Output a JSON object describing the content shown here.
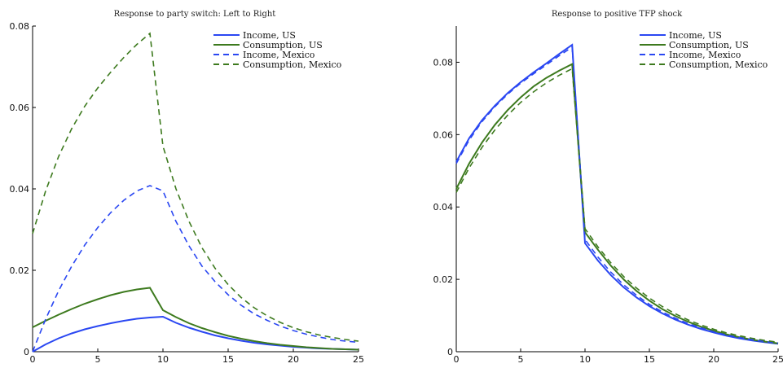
{
  "colors": {
    "blue": "#2a47f2",
    "green": "#3d7a1e"
  },
  "chart_data": [
    {
      "type": "line",
      "title": "Response to party switch: Left to Right",
      "xlabel": "",
      "ylabel": "",
      "xlim": [
        0,
        25
      ],
      "ylim": [
        0,
        0.08
      ],
      "xticks": [
        0,
        5,
        10,
        15,
        20,
        25
      ],
      "yticks": [
        0,
        0.02,
        0.04,
        0.06,
        0.08
      ],
      "ytick_labels": [
        "0",
        "0.02",
        "0.04",
        "0.06",
        "0.08"
      ],
      "legend_position": "top-right",
      "grid": false,
      "series": [
        {
          "name": "Income, US",
          "color": "#2a47f2",
          "dash": "solid",
          "points": [
            [
              0,
              0.0
            ],
            [
              1,
              0.0018
            ],
            [
              2,
              0.0033
            ],
            [
              3,
              0.0045
            ],
            [
              4,
              0.0055
            ],
            [
              5,
              0.0063
            ],
            [
              6,
              0.007
            ],
            [
              7,
              0.0076
            ],
            [
              8,
              0.0081
            ],
            [
              9,
              0.0084
            ],
            [
              10,
              0.0086
            ],
            [
              11,
              0.0071
            ],
            [
              12,
              0.0059
            ],
            [
              13,
              0.0049
            ],
            [
              14,
              0.004
            ],
            [
              15,
              0.0033
            ],
            [
              16,
              0.0027
            ],
            [
              17,
              0.0022
            ],
            [
              18,
              0.0018
            ],
            [
              19,
              0.0015
            ],
            [
              20,
              0.0012
            ],
            [
              21,
              0.001
            ],
            [
              22,
              0.0008
            ],
            [
              23,
              0.0007
            ],
            [
              24,
              0.0006
            ],
            [
              25,
              0.0005
            ]
          ]
        },
        {
          "name": "Consumption, US",
          "color": "#3d7a1e",
          "dash": "solid",
          "points": [
            [
              0,
              0.006
            ],
            [
              1,
              0.0076
            ],
            [
              2,
              0.0091
            ],
            [
              3,
              0.0105
            ],
            [
              4,
              0.0118
            ],
            [
              5,
              0.0129
            ],
            [
              6,
              0.0139
            ],
            [
              7,
              0.0147
            ],
            [
              8,
              0.0153
            ],
            [
              9,
              0.0157
            ],
            [
              10,
              0.0102
            ],
            [
              11,
              0.0085
            ],
            [
              12,
              0.007
            ],
            [
              13,
              0.0058
            ],
            [
              14,
              0.0048
            ],
            [
              15,
              0.0039
            ],
            [
              16,
              0.0032
            ],
            [
              17,
              0.0026
            ],
            [
              18,
              0.0021
            ],
            [
              19,
              0.0017
            ],
            [
              20,
              0.0014
            ],
            [
              21,
              0.0011
            ],
            [
              22,
              0.0009
            ],
            [
              23,
              0.0007
            ],
            [
              24,
              0.0006
            ],
            [
              25,
              0.0005
            ]
          ]
        },
        {
          "name": "Income, Mexico",
          "color": "#2a47f2",
          "dash": "dashed",
          "points": [
            [
              0,
              0.0
            ],
            [
              1,
              0.008
            ],
            [
              2,
              0.015
            ],
            [
              3,
              0.021
            ],
            [
              4,
              0.0262
            ],
            [
              5,
              0.0305
            ],
            [
              6,
              0.0342
            ],
            [
              7,
              0.0372
            ],
            [
              8,
              0.0395
            ],
            [
              9,
              0.0408
            ],
            [
              10,
              0.0395
            ],
            [
              11,
              0.032
            ],
            [
              12,
              0.026
            ],
            [
              13,
              0.021
            ],
            [
              14,
              0.0172
            ],
            [
              15,
              0.014
            ],
            [
              16,
              0.0114
            ],
            [
              17,
              0.0093
            ],
            [
              18,
              0.0077
            ],
            [
              19,
              0.0063
            ],
            [
              20,
              0.0052
            ],
            [
              21,
              0.0043
            ],
            [
              22,
              0.0036
            ],
            [
              23,
              0.003
            ],
            [
              24,
              0.0026
            ],
            [
              25,
              0.0023
            ]
          ]
        },
        {
          "name": "Consumption, Mexico",
          "color": "#3d7a1e",
          "dash": "dashed",
          "points": [
            [
              0,
              0.029
            ],
            [
              1,
              0.0395
            ],
            [
              2,
              0.048
            ],
            [
              3,
              0.0548
            ],
            [
              4,
              0.0603
            ],
            [
              5,
              0.0648
            ],
            [
              6,
              0.0687
            ],
            [
              7,
              0.0723
            ],
            [
              8,
              0.0755
            ],
            [
              9,
              0.0782
            ],
            [
              10,
              0.0505
            ],
            [
              11,
              0.04
            ],
            [
              12,
              0.032
            ],
            [
              13,
              0.0255
            ],
            [
              14,
              0.0205
            ],
            [
              15,
              0.0165
            ],
            [
              16,
              0.0133
            ],
            [
              17,
              0.0108
            ],
            [
              18,
              0.0088
            ],
            [
              19,
              0.0072
            ],
            [
              20,
              0.0059
            ],
            [
              21,
              0.0049
            ],
            [
              22,
              0.0041
            ],
            [
              23,
              0.0035
            ],
            [
              24,
              0.003
            ],
            [
              25,
              0.0026
            ]
          ]
        }
      ]
    },
    {
      "type": "line",
      "title": "Response to positive TFP shock",
      "xlabel": "",
      "ylabel": "",
      "xlim": [
        0,
        25
      ],
      "ylim": [
        0,
        0.09
      ],
      "xticks": [
        0,
        5,
        10,
        15,
        20,
        25
      ],
      "yticks": [
        0,
        0.02,
        0.04,
        0.06,
        0.08
      ],
      "ytick_labels": [
        "0",
        "0.02",
        "0.04",
        "0.06",
        "0.08"
      ],
      "legend_position": "top-right",
      "grid": false,
      "series": [
        {
          "name": "Income, US",
          "color": "#2a47f2",
          "dash": "solid",
          "points": [
            [
              0,
              0.0525
            ],
            [
              1,
              0.059
            ],
            [
              2,
              0.064
            ],
            [
              3,
              0.068
            ],
            [
              4,
              0.0715
            ],
            [
              5,
              0.0745
            ],
            [
              6,
              0.0772
            ],
            [
              7,
              0.0797
            ],
            [
              8,
              0.0823
            ],
            [
              9,
              0.0848
            ],
            [
              10,
              0.03
            ],
            [
              11,
              0.0252
            ],
            [
              12,
              0.0212
            ],
            [
              13,
              0.0178
            ],
            [
              14,
              0.015
            ],
            [
              15,
              0.0126
            ],
            [
              16,
              0.0106
            ],
            [
              17,
              0.0089
            ],
            [
              18,
              0.0075
            ],
            [
              19,
              0.0063
            ],
            [
              20,
              0.0053
            ],
            [
              21,
              0.0044
            ],
            [
              22,
              0.0037
            ],
            [
              23,
              0.0031
            ],
            [
              24,
              0.0026
            ],
            [
              25,
              0.0022
            ]
          ]
        },
        {
          "name": "Consumption, US",
          "color": "#3d7a1e",
          "dash": "solid",
          "points": [
            [
              0,
              0.045
            ],
            [
              1,
              0.052
            ],
            [
              2,
              0.0578
            ],
            [
              3,
              0.0627
            ],
            [
              4,
              0.0668
            ],
            [
              5,
              0.0703
            ],
            [
              6,
              0.0733
            ],
            [
              7,
              0.0757
            ],
            [
              8,
              0.0777
            ],
            [
              9,
              0.0795
            ],
            [
              10,
              0.033
            ],
            [
              11,
              0.0282
            ],
            [
              12,
              0.0238
            ],
            [
              13,
              0.02
            ],
            [
              14,
              0.0168
            ],
            [
              15,
              0.0141
            ],
            [
              16,
              0.0118
            ],
            [
              17,
              0.0099
            ],
            [
              18,
              0.0083
            ],
            [
              19,
              0.0069
            ],
            [
              20,
              0.0058
            ],
            [
              21,
              0.0048
            ],
            [
              22,
              0.004
            ],
            [
              23,
              0.0033
            ],
            [
              24,
              0.0028
            ],
            [
              25,
              0.0023
            ]
          ]
        },
        {
          "name": "Income, Mexico",
          "color": "#2a47f2",
          "dash": "dashed",
          "points": [
            [
              0,
              0.052
            ],
            [
              1,
              0.0585
            ],
            [
              2,
              0.0636
            ],
            [
              3,
              0.0677
            ],
            [
              4,
              0.0712
            ],
            [
              5,
              0.0742
            ],
            [
              6,
              0.0768
            ],
            [
              7,
              0.0793
            ],
            [
              8,
              0.0818
            ],
            [
              9,
              0.0842
            ],
            [
              10,
              0.031
            ],
            [
              11,
              0.0262
            ],
            [
              12,
              0.022
            ],
            [
              13,
              0.0185
            ],
            [
              14,
              0.0156
            ],
            [
              15,
              0.0131
            ],
            [
              16,
              0.011
            ],
            [
              17,
              0.0093
            ],
            [
              18,
              0.0078
            ],
            [
              19,
              0.0066
            ],
            [
              20,
              0.0055
            ],
            [
              21,
              0.0046
            ],
            [
              22,
              0.0039
            ],
            [
              23,
              0.0033
            ],
            [
              24,
              0.0028
            ],
            [
              25,
              0.0024
            ]
          ]
        },
        {
          "name": "Consumption, Mexico",
          "color": "#3d7a1e",
          "dash": "dashed",
          "points": [
            [
              0,
              0.044
            ],
            [
              1,
              0.0508
            ],
            [
              2,
              0.0565
            ],
            [
              3,
              0.0613
            ],
            [
              4,
              0.0654
            ],
            [
              5,
              0.0689
            ],
            [
              6,
              0.0718
            ],
            [
              7,
              0.0743
            ],
            [
              8,
              0.0764
            ],
            [
              9,
              0.0782
            ],
            [
              10,
              0.034
            ],
            [
              11,
              0.029
            ],
            [
              12,
              0.0246
            ],
            [
              13,
              0.0208
            ],
            [
              14,
              0.0176
            ],
            [
              15,
              0.0148
            ],
            [
              16,
              0.0125
            ],
            [
              17,
              0.0105
            ],
            [
              18,
              0.0088
            ],
            [
              19,
              0.0074
            ],
            [
              20,
              0.0062
            ],
            [
              21,
              0.0052
            ],
            [
              22,
              0.0044
            ],
            [
              23,
              0.0037
            ],
            [
              24,
              0.0031
            ],
            [
              25,
              0.0026
            ]
          ]
        }
      ]
    }
  ]
}
